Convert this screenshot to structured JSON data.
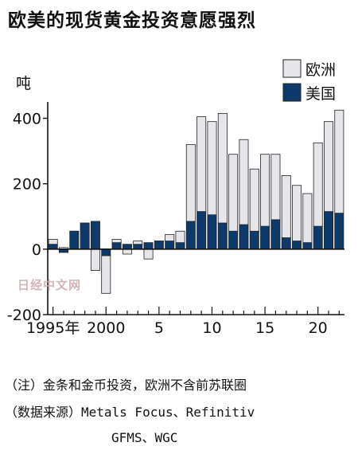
{
  "chart_data": {
    "type": "bar",
    "stacked": true,
    "title": "欧美的现货黄金投资意愿强烈",
    "ylabel": "吨",
    "ylim": [
      -200,
      450
    ],
    "yticks": [
      -200,
      0,
      200,
      400
    ],
    "x": [
      1995,
      1996,
      1997,
      1998,
      1999,
      2000,
      2001,
      2002,
      2003,
      2004,
      2005,
      2006,
      2007,
      2008,
      2009,
      2010,
      2011,
      2012,
      2013,
      2014,
      2015,
      2016,
      2017,
      2018,
      2019,
      2020,
      2021,
      2022
    ],
    "xtick_labels": [
      {
        "x": 1995,
        "label": "1995年"
      },
      {
        "x": 2000,
        "label": "2000"
      },
      {
        "x": 2005,
        "label": "5"
      },
      {
        "x": 2010,
        "label": "10"
      },
      {
        "x": 2015,
        "label": "15"
      },
      {
        "x": 2020,
        "label": "20"
      }
    ],
    "series": [
      {
        "name": "美国",
        "color": "#0d3a6b",
        "values": [
          15,
          -10,
          55,
          80,
          85,
          -20,
          20,
          15,
          15,
          20,
          25,
          25,
          20,
          85,
          115,
          105,
          80,
          55,
          75,
          55,
          70,
          90,
          35,
          25,
          20,
          70,
          115,
          110
        ]
      },
      {
        "name": "欧洲",
        "color": "#e6e6ea",
        "values": [
          15,
          5,
          0,
          0,
          -65,
          -115,
          10,
          -15,
          10,
          -30,
          0,
          20,
          35,
          235,
          290,
          285,
          335,
          235,
          260,
          190,
          220,
          200,
          190,
          170,
          150,
          255,
          275,
          315
        ]
      }
    ],
    "legend_position": "top-right",
    "grid": false
  },
  "note": "（注）金条和金币投资，欧洲不含前苏联圈",
  "source": "（数据来源）Metals Focus、Refinitiv",
  "source_cont": "GFMS、WGC",
  "watermark": "日经中文网"
}
